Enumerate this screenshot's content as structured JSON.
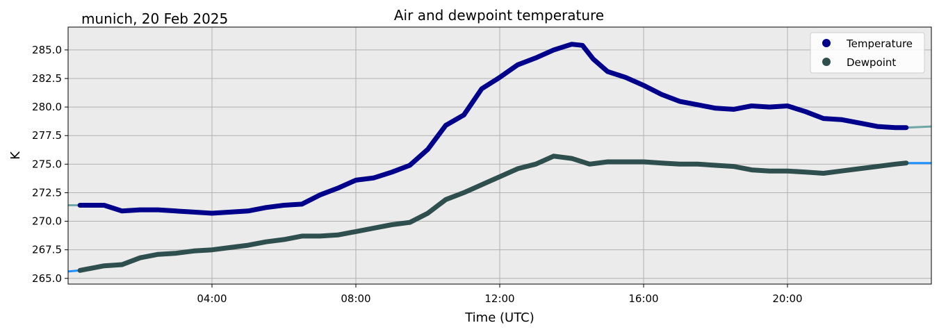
{
  "chart_data": {
    "type": "line",
    "title": "Air and dewpoint temperature",
    "subtitle": "munich, 20 Feb 2025",
    "xlabel": "Time (UTC)",
    "ylabel": "K",
    "xlim": [
      "00:00",
      "24:00"
    ],
    "ylim": [
      264.5,
      287.0
    ],
    "x_ticks": [
      "04:00",
      "08:00",
      "12:00",
      "16:00",
      "20:00"
    ],
    "y_ticks": [
      "265.0",
      "267.5",
      "270.0",
      "272.5",
      "275.0",
      "277.5",
      "280.0",
      "282.5",
      "285.0"
    ],
    "grid": true,
    "legend_position": "top-right",
    "plot_background": "#ebebeb",
    "series": [
      {
        "name": "Temperature",
        "color": "#00008b",
        "raw_color": "#6fa6a6",
        "x_hours": [
          0.0,
          0.33,
          1.0,
          1.5,
          2.0,
          2.5,
          3.0,
          3.5,
          4.0,
          4.5,
          5.0,
          5.5,
          6.0,
          6.5,
          7.0,
          7.5,
          8.0,
          8.5,
          9.0,
          9.5,
          10.0,
          10.5,
          11.0,
          11.5,
          12.0,
          12.5,
          13.0,
          13.5,
          14.0,
          14.3,
          14.6,
          15.0,
          15.5,
          16.0,
          16.5,
          17.0,
          17.5,
          18.0,
          18.5,
          19.0,
          19.5,
          20.0,
          20.5,
          21.0,
          21.5,
          22.0,
          22.5,
          23.0,
          23.3,
          24.0
        ],
        "values": [
          271.4,
          271.4,
          271.4,
          270.9,
          271.0,
          271.0,
          270.9,
          270.8,
          270.7,
          270.8,
          270.9,
          271.2,
          271.4,
          271.5,
          272.3,
          272.9,
          273.6,
          273.8,
          274.3,
          274.9,
          276.3,
          278.4,
          279.3,
          281.6,
          282.6,
          283.7,
          284.3,
          285.0,
          285.5,
          285.4,
          284.2,
          283.1,
          282.6,
          281.9,
          281.1,
          280.5,
          280.2,
          279.9,
          279.8,
          280.1,
          280.0,
          280.1,
          279.6,
          279.0,
          278.9,
          278.6,
          278.3,
          278.2,
          278.2,
          278.3
        ]
      },
      {
        "name": "Dewpoint",
        "color": "#2f4f4f",
        "raw_color": "#1e90ff",
        "x_hours": [
          0.0,
          0.33,
          1.0,
          1.5,
          2.0,
          2.5,
          3.0,
          3.5,
          4.0,
          4.5,
          5.0,
          5.5,
          6.0,
          6.5,
          7.0,
          7.5,
          8.0,
          8.5,
          9.0,
          9.5,
          10.0,
          10.5,
          11.0,
          11.5,
          12.0,
          12.5,
          13.0,
          13.5,
          14.0,
          14.5,
          15.0,
          15.5,
          16.0,
          16.5,
          17.0,
          17.5,
          18.0,
          18.5,
          19.0,
          19.5,
          20.0,
          20.5,
          21.0,
          21.5,
          22.0,
          22.5,
          23.0,
          23.3,
          24.0
        ],
        "values": [
          265.6,
          265.7,
          266.1,
          266.2,
          266.8,
          267.1,
          267.2,
          267.4,
          267.5,
          267.7,
          267.9,
          268.2,
          268.4,
          268.7,
          268.7,
          268.8,
          269.1,
          269.4,
          269.7,
          269.9,
          270.7,
          271.9,
          272.5,
          273.2,
          273.9,
          274.6,
          275.0,
          275.7,
          275.5,
          275.0,
          275.2,
          275.2,
          275.2,
          275.1,
          275.0,
          275.0,
          274.9,
          274.8,
          274.5,
          274.4,
          274.4,
          274.3,
          274.2,
          274.4,
          274.6,
          274.8,
          275.0,
          275.1,
          275.1
        ]
      }
    ]
  }
}
